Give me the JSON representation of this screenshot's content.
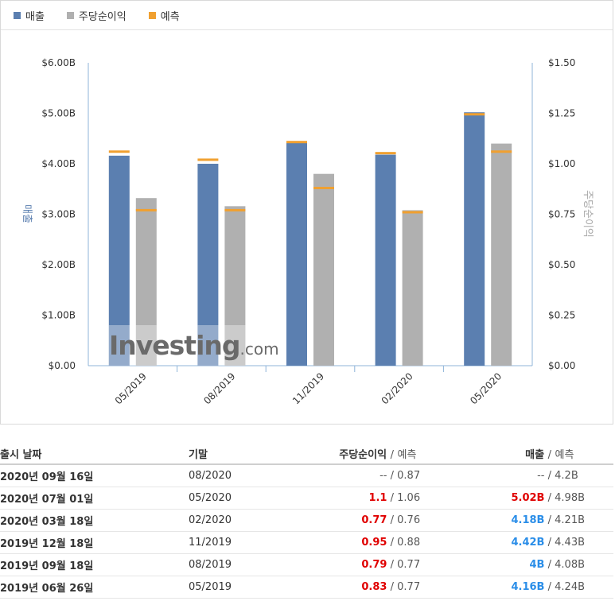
{
  "legend": {
    "items": [
      {
        "label": "매출",
        "color": "#5b7fb0"
      },
      {
        "label": "주당순이익",
        "color": "#b0b0b0"
      },
      {
        "label": "예측",
        "color": "#f0a030"
      }
    ]
  },
  "watermark": {
    "main": "Investing",
    "suffix": ".com"
  },
  "chart_data": {
    "type": "bar",
    "categories": [
      "05/2019",
      "08/2019",
      "11/2019",
      "02/2020",
      "05/2020"
    ],
    "series": [
      {
        "name": "매출",
        "axis": "left",
        "color": "#5b7fb0",
        "values": [
          4.16,
          4.0,
          4.42,
          4.18,
          5.02
        ],
        "forecast": [
          4.24,
          4.08,
          4.43,
          4.21,
          4.98
        ]
      },
      {
        "name": "주당순이익",
        "axis": "right",
        "color": "#b0b0b0",
        "values": [
          0.83,
          0.79,
          0.95,
          0.77,
          1.1
        ],
        "forecast": [
          0.77,
          0.77,
          0.88,
          0.76,
          1.06
        ]
      }
    ],
    "forecast_color": "#f0a030",
    "y_left": {
      "label": "매출",
      "ticks": [
        "$0.00",
        "$1.00B",
        "$2.00B",
        "$3.00B",
        "$4.00B",
        "$5.00B",
        "$6.00B"
      ],
      "range": [
        0,
        6
      ]
    },
    "y_right": {
      "label": "주당순이익",
      "ticks": [
        "$0.00",
        "$0.25",
        "$0.50",
        "$0.75",
        "$1.00",
        "$1.25",
        "$1.50"
      ],
      "range": [
        0,
        1.5
      ]
    },
    "grid": false
  },
  "table": {
    "headers": {
      "date": "출시 날짜",
      "period": "기말",
      "eps": "주당순이익",
      "eps_sep": "/",
      "eps_forecast": "예측",
      "revenue": "매출",
      "rev_sep": "/",
      "revenue_forecast": "예측"
    },
    "rows": [
      {
        "date": "2020년 09월 16일",
        "period": "08/2020",
        "eps": "--",
        "eps_sep": "/",
        "eps_forecast": "0.87",
        "revenue": "--",
        "rev_sep": "/",
        "revenue_forecast": "4.2B",
        "eps_style": "plain",
        "rev_style": "plain"
      },
      {
        "date": "2020년 07월 01일",
        "period": "05/2020",
        "eps": "1.1",
        "eps_sep": "/",
        "eps_forecast": "1.06",
        "revenue": "5.02B",
        "rev_sep": "/",
        "revenue_forecast": "4.98B",
        "eps_style": "red",
        "rev_style": "red"
      },
      {
        "date": "2020년 03월 18일",
        "period": "02/2020",
        "eps": "0.77",
        "eps_sep": "/",
        "eps_forecast": "0.76",
        "revenue": "4.18B",
        "rev_sep": "/",
        "revenue_forecast": "4.21B",
        "eps_style": "red",
        "rev_style": "blue"
      },
      {
        "date": "2019년 12월 18일",
        "period": "11/2019",
        "eps": "0.95",
        "eps_sep": "/",
        "eps_forecast": "0.88",
        "revenue": "4.42B",
        "rev_sep": "/",
        "revenue_forecast": "4.43B",
        "eps_style": "red",
        "rev_style": "blue"
      },
      {
        "date": "2019년 09월 18일",
        "period": "08/2019",
        "eps": "0.79",
        "eps_sep": "/",
        "eps_forecast": "0.77",
        "revenue": "4B",
        "rev_sep": "/",
        "revenue_forecast": "4.08B",
        "eps_style": "red",
        "rev_style": "blue"
      },
      {
        "date": "2019년 06월 26일",
        "period": "05/2019",
        "eps": "0.83",
        "eps_sep": "/",
        "eps_forecast": "0.77",
        "revenue": "4.16B",
        "rev_sep": "/",
        "revenue_forecast": "4.24B",
        "eps_style": "red",
        "rev_style": "blue"
      }
    ]
  }
}
